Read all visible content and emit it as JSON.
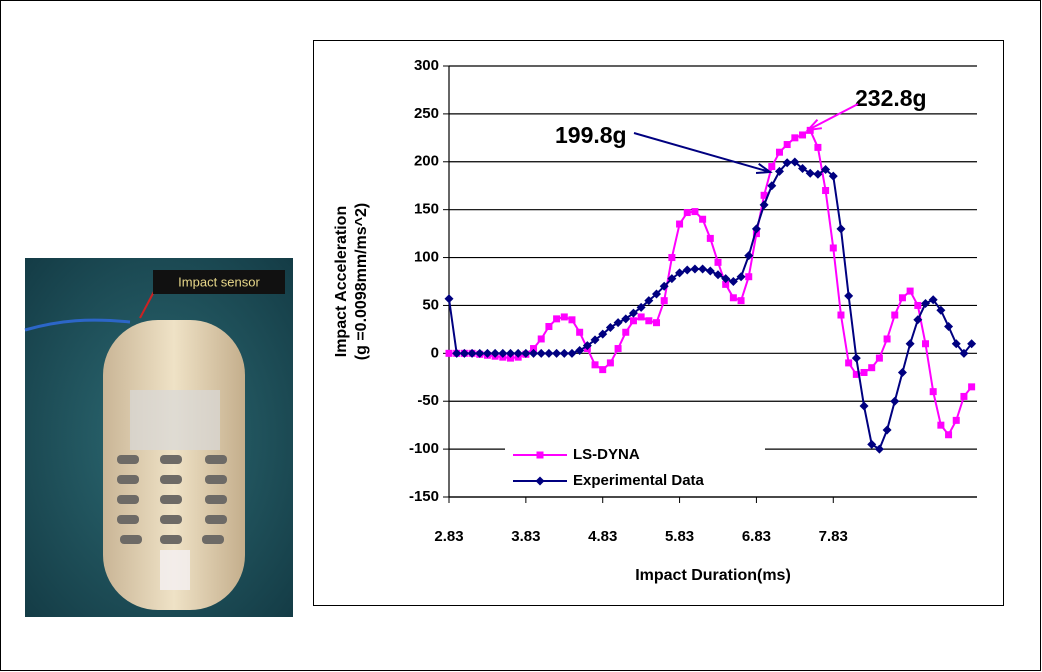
{
  "photo": {
    "label": "Impact sensor"
  },
  "chart_data": {
    "type": "line",
    "y_label": [
      "Impact Acceleration",
      "(g =0.0098mm/ms^2)"
    ],
    "x_label": "Impact Duration(ms)",
    "x": [
      2.83,
      2.93,
      3.03,
      3.13,
      3.23,
      3.33,
      3.43,
      3.53,
      3.63,
      3.73,
      3.83,
      3.93,
      4.03,
      4.13,
      4.23,
      4.33,
      4.43,
      4.53,
      4.63,
      4.73,
      4.83,
      4.93,
      5.03,
      5.13,
      5.23,
      5.33,
      5.43,
      5.53,
      5.63,
      5.73,
      5.83,
      5.93,
      6.03,
      6.13,
      6.23,
      6.33,
      6.43,
      6.53,
      6.63,
      6.73,
      6.83,
      6.93,
      7.03,
      7.13,
      7.23,
      7.33,
      7.43,
      7.53,
      7.63,
      7.73,
      7.83,
      7.93,
      8.03,
      8.13,
      8.23,
      8.33,
      8.43,
      8.53,
      8.63,
      8.73,
      8.83,
      8.93,
      9.03,
      9.13,
      9.23,
      9.33,
      9.43,
      9.53,
      9.63
    ],
    "series": [
      {
        "name": "LS-DYNA",
        "color": "#ff00ff",
        "marker": "square",
        "values": [
          0,
          0,
          0,
          0,
          -1,
          -2,
          -3,
          -4,
          -5,
          -4,
          -1,
          5,
          15,
          28,
          36,
          38,
          35,
          22,
          5,
          -12,
          -17,
          -10,
          5,
          22,
          34,
          38,
          34,
          32,
          55,
          100,
          135,
          147,
          148,
          140,
          120,
          95,
          72,
          58,
          55,
          80,
          125,
          165,
          195,
          210,
          218,
          225,
          228,
          232.8,
          215,
          170,
          110,
          40,
          -10,
          -22,
          -20,
          -15,
          -5,
          15,
          40,
          58,
          65,
          50,
          10,
          -40,
          -75,
          -85,
          -70,
          -45,
          -35
        ]
      },
      {
        "name": "Experimental Data",
        "color": "#000080",
        "marker": "diamond",
        "values": [
          57,
          0,
          0,
          0,
          0,
          0,
          0,
          0,
          0,
          0,
          0,
          0,
          0,
          0,
          0,
          0,
          0,
          3,
          8,
          14,
          20,
          27,
          32,
          36,
          42,
          48,
          55,
          62,
          70,
          78,
          84,
          87,
          88,
          88,
          86,
          82,
          78,
          75,
          80,
          102,
          130,
          155,
          175,
          190,
          199,
          199.8,
          193,
          188,
          187,
          192,
          185,
          130,
          60,
          -5,
          -55,
          -95,
          -100,
          -80,
          -50,
          -20,
          10,
          35,
          52,
          56,
          45,
          28,
          10,
          0,
          10
        ]
      }
    ],
    "annotations": [
      {
        "text": "232.8g",
        "color": "#ff00ff"
      },
      {
        "text": "199.8g",
        "color": "#000080"
      }
    ],
    "xlim": [
      2.83,
      9.7
    ],
    "xticks": [
      2.83,
      3.83,
      4.83,
      5.83,
      6.83,
      7.83
    ],
    "ylim": [
      -150,
      300
    ],
    "yticks": [
      -150,
      -100,
      -50,
      0,
      50,
      100,
      150,
      200,
      250,
      300
    ],
    "grid": true,
    "legend": "lower left"
  }
}
